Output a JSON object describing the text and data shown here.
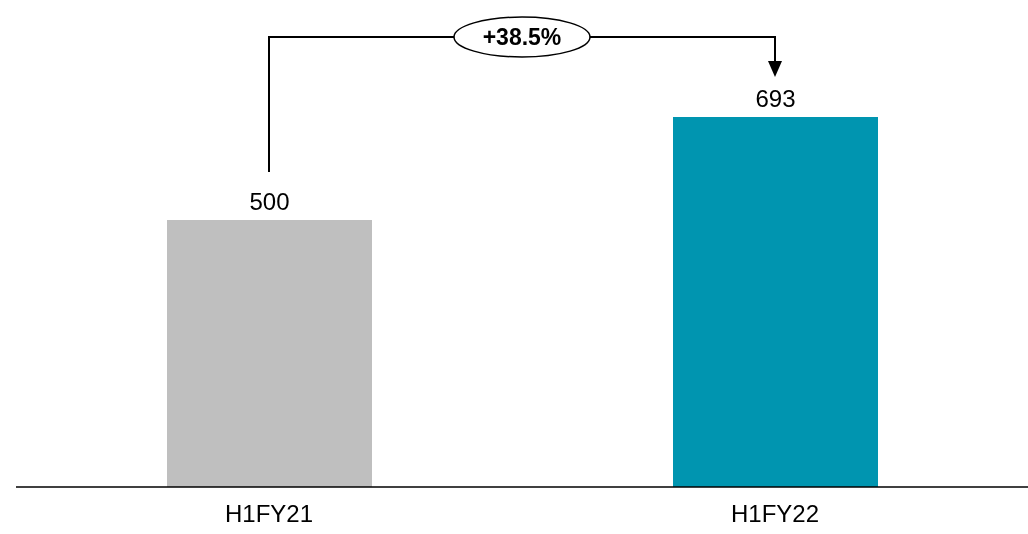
{
  "chart_data": {
    "type": "bar",
    "categories": [
      "H1FY21",
      "H1FY22"
    ],
    "values": [
      500,
      693
    ],
    "colors": [
      "#bfbfbf",
      "#0095b0"
    ],
    "data_labels": true,
    "annotations": [
      "+38.5%"
    ]
  }
}
